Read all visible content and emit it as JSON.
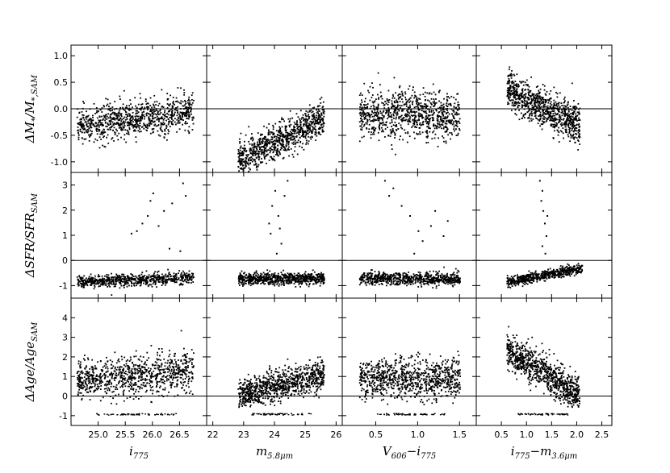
{
  "figure": {
    "ylabels": [
      {
        "main": "ΔM",
        "sub1": "*",
        "mid": "/M",
        "sub2": "*,SAM"
      },
      {
        "main": "ΔSFR/SFR",
        "sub": "SAM"
      },
      {
        "main": "ΔAge/Age",
        "sub": "SAM"
      }
    ],
    "xlabels": [
      {
        "main": "i",
        "sub": "775"
      },
      {
        "main": "m",
        "sub": "5.8μm"
      },
      {
        "main": "V",
        "sub": "606",
        "mid": "−i",
        "sub2": "775"
      },
      {
        "main": "i",
        "sub": "775",
        "mid": "−m",
        "sub2": "3.6μm"
      }
    ]
  },
  "chart_data": {
    "type": "scatter",
    "grid": false,
    "legend": "none",
    "columns": [
      {
        "x": "i_775",
        "xlim": [
          24.5,
          27.0
        ],
        "xticks": [
          25.0,
          25.5,
          26.0,
          26.5
        ],
        "xtick_labels": [
          "25.0",
          "25.5",
          "26.0",
          "26.5"
        ]
      },
      {
        "x": "m_5.8um",
        "xlim": [
          21.8,
          26.2
        ],
        "xticks": [
          22,
          23,
          24,
          25,
          26
        ],
        "xtick_labels": [
          "22",
          "23",
          "24",
          "25",
          "26"
        ]
      },
      {
        "x": "V_606 - i_775",
        "xlim": [
          0.1,
          1.7
        ],
        "xticks": [
          0.5,
          1.0,
          1.5
        ],
        "xtick_labels": [
          "0.5",
          "1.0",
          "1.5"
        ]
      },
      {
        "x": "i_775 - m_3.6um",
        "xlim": [
          0.0,
          2.7
        ],
        "xticks": [
          0.5,
          1.0,
          1.5,
          2.0,
          2.5
        ],
        "xtick_labels": [
          "0.5",
          "1.0",
          "1.5",
          "2.0",
          "2.5"
        ]
      }
    ],
    "rows": [
      {
        "y": "ΔM*/M*,SAM",
        "ylim": [
          -1.2,
          1.2
        ],
        "yticks": [
          -1.0,
          -0.5,
          0.0,
          0.5,
          1.0
        ],
        "ytick_labels": [
          "-1.0",
          "-0.5",
          "0.0",
          "0.5",
          "1.0"
        ],
        "hline": 0
      },
      {
        "y": "ΔSFR/SFR_SAM",
        "ylim": [
          -1.5,
          3.5
        ],
        "yticks": [
          -1,
          0,
          1,
          2,
          3
        ],
        "ytick_labels": [
          "-1",
          "0",
          "1",
          "2",
          "3"
        ],
        "hline": 0
      },
      {
        "y": "ΔAge/Age_SAM",
        "ylim": [
          -1.5,
          5.0
        ],
        "yticks": [
          -1,
          0,
          1,
          2,
          3,
          4
        ],
        "ytick_labels": [
          "-1",
          "0",
          "1",
          "2",
          "3",
          "4"
        ],
        "hline": 0
      }
    ],
    "trends": [
      [
        {
          "xrange": [
            24.6,
            26.75
          ],
          "xpeak": 26.75,
          "y0": -0.32,
          "slope": 0.12,
          "spread": 0.17,
          "n": 900
        },
        {
          "xrange": [
            22.8,
            25.6
          ],
          "y0": -0.95,
          "slope": 0.28,
          "spread": 0.16,
          "n": 900
        },
        {
          "xrange": [
            0.3,
            1.5
          ],
          "y0": -0.1,
          "slope": 0.0,
          "spread": 0.22,
          "n": 900
        },
        {
          "xrange": [
            0.6,
            2.05
          ],
          "y0": 0.35,
          "slope": -0.45,
          "spread": 0.17,
          "n": 900
        }
      ],
      [
        {
          "xrange": [
            24.6,
            26.75
          ],
          "y0": -0.82,
          "slope": 0.08,
          "spread": 0.12,
          "n": 700,
          "outliers": [
            [
              25.6,
              1.1
            ],
            [
              25.8,
              1.5
            ],
            [
              25.9,
              1.8
            ],
            [
              26.0,
              2.7
            ],
            [
              26.1,
              1.4
            ],
            [
              26.2,
              2.0
            ],
            [
              26.35,
              2.3
            ],
            [
              25.95,
              2.4
            ],
            [
              26.55,
              3.1
            ],
            [
              26.6,
              2.6
            ],
            [
              26.3,
              0.5
            ],
            [
              26.5,
              0.4
            ],
            [
              25.7,
              1.2
            ]
          ]
        },
        {
          "xrange": [
            22.8,
            25.6
          ],
          "y0": -0.7,
          "slope": 0.0,
          "spread": 0.12,
          "n": 700,
          "outliers": [
            [
              23.8,
              1.5
            ],
            [
              23.9,
              2.2
            ],
            [
              24.0,
              2.8
            ],
            [
              24.1,
              1.8
            ],
            [
              24.2,
              0.7
            ],
            [
              24.3,
              2.6
            ],
            [
              23.85,
              1.1
            ],
            [
              24.05,
              0.3
            ],
            [
              24.15,
              1.3
            ],
            [
              24.4,
              3.2
            ]
          ]
        },
        {
          "xrange": [
            0.3,
            1.5
          ],
          "y0": -0.7,
          "slope": 0.0,
          "spread": 0.12,
          "n": 700,
          "outliers": [
            [
              0.6,
              3.2
            ],
            [
              0.65,
              2.6
            ],
            [
              0.7,
              2.9
            ],
            [
              0.8,
              2.2
            ],
            [
              0.9,
              1.8
            ],
            [
              1.0,
              1.2
            ],
            [
              1.05,
              0.8
            ],
            [
              1.15,
              1.4
            ],
            [
              1.2,
              2.0
            ],
            [
              1.3,
              1.0
            ],
            [
              1.35,
              1.6
            ],
            [
              0.95,
              0.3
            ]
          ]
        },
        {
          "xrange": [
            0.6,
            2.1
          ],
          "y0": -0.82,
          "slope": 0.35,
          "spread": 0.1,
          "n": 600,
          "outliers": [
            [
              1.25,
              3.2
            ],
            [
              1.3,
              2.8
            ],
            [
              1.32,
              2.0
            ],
            [
              1.35,
              1.5
            ],
            [
              1.38,
              1.0
            ],
            [
              1.3,
              0.6
            ],
            [
              1.28,
              2.4
            ],
            [
              1.4,
              1.8
            ],
            [
              1.36,
              0.3
            ]
          ]
        }
      ],
      [
        {
          "xrange": [
            24.6,
            26.75
          ],
          "y0": 0.85,
          "slope": 0.2,
          "spread": 0.5,
          "n": 900,
          "floor": -0.9
        },
        {
          "xrange": [
            22.8,
            25.6
          ],
          "y0": 0.1,
          "slope": 0.35,
          "spread": 0.4,
          "n": 900,
          "floor": -0.9
        },
        {
          "xrange": [
            0.3,
            1.5
          ],
          "y0": 0.95,
          "slope": 0.0,
          "spread": 0.5,
          "n": 900,
          "floor": -0.9
        },
        {
          "xrange": [
            0.6,
            2.05
          ],
          "y0": 2.4,
          "slope": -1.6,
          "spread": 0.45,
          "n": 900,
          "floor": -0.9
        }
      ]
    ]
  }
}
